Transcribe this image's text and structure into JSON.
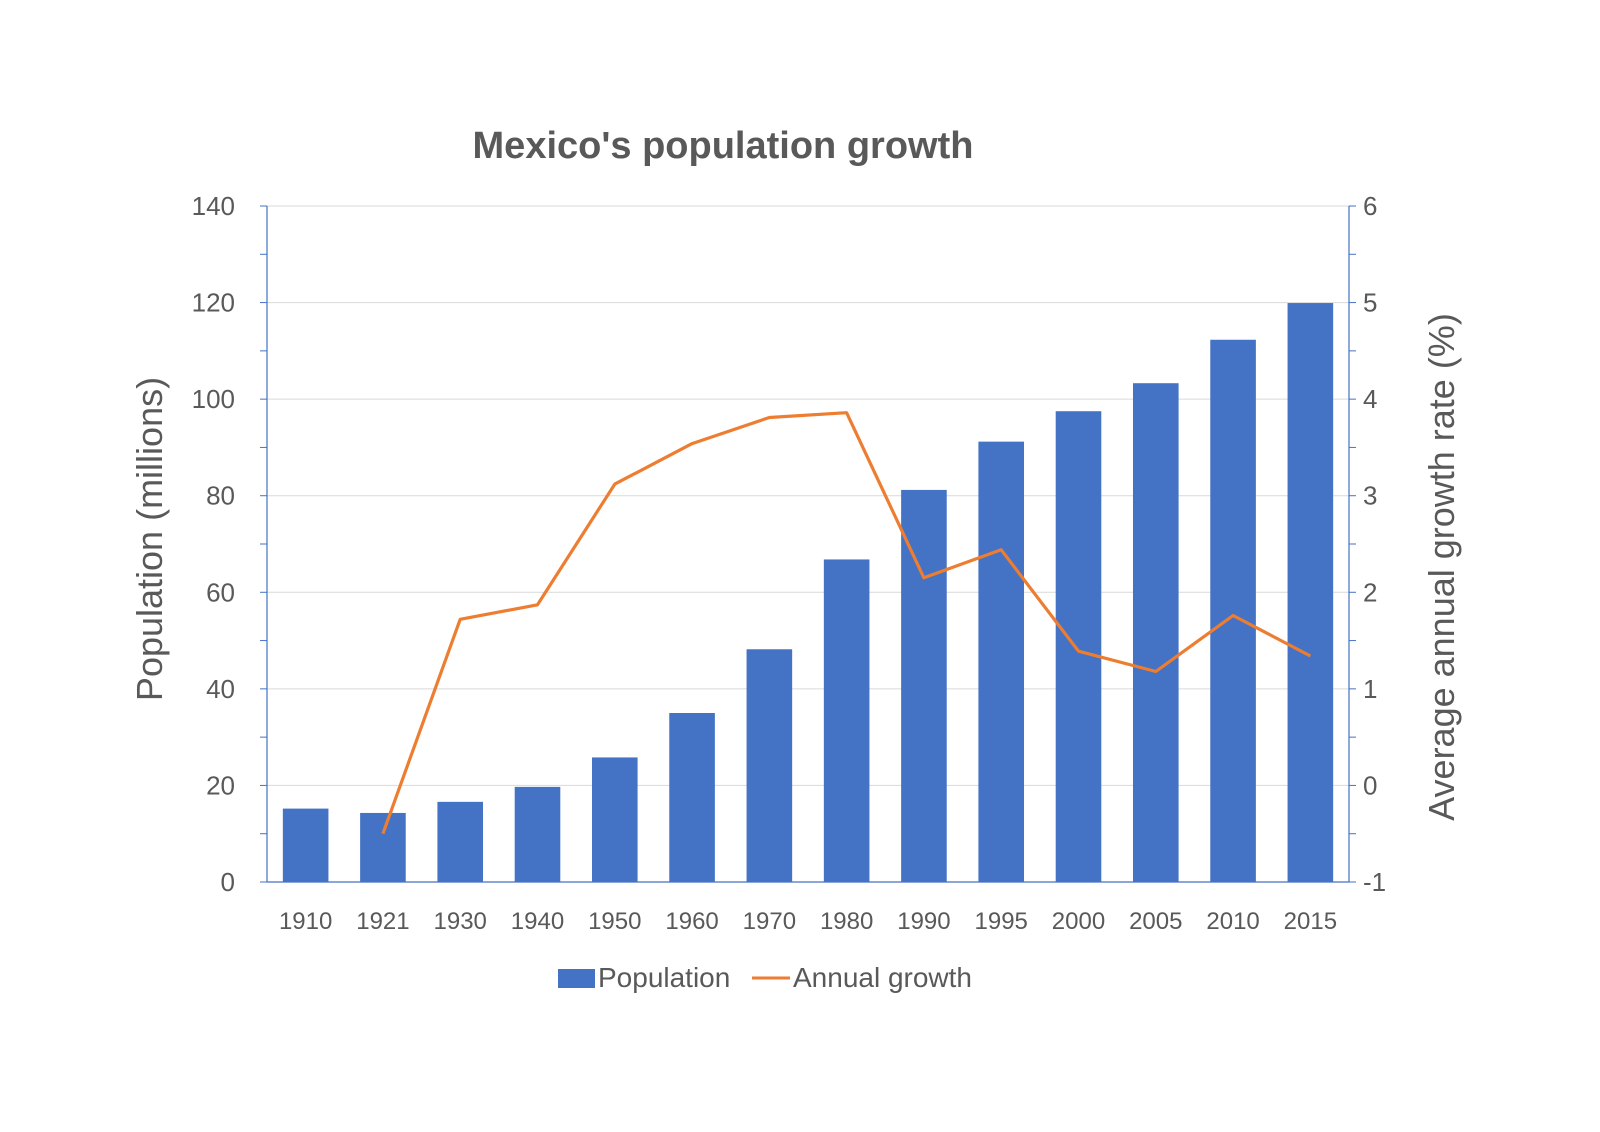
{
  "chart_data": {
    "type": "bar",
    "title": "Mexico's population growth",
    "categories": [
      "1910",
      "1921",
      "1930",
      "1940",
      "1950",
      "1960",
      "1970",
      "1980",
      "1990",
      "1995",
      "2000",
      "2005",
      "2010",
      "2015"
    ],
    "series": [
      {
        "name": "Population",
        "type": "bar",
        "axis": "left",
        "color": "#4472C4",
        "values": [
          15.2,
          14.3,
          16.6,
          19.7,
          25.8,
          35.0,
          48.2,
          66.8,
          81.2,
          91.2,
          97.5,
          103.3,
          112.3,
          119.9
        ]
      },
      {
        "name": "Annual growth",
        "type": "line",
        "axis": "right",
        "color": "#ED7D31",
        "values": [
          null,
          -0.5,
          1.72,
          1.87,
          3.12,
          3.54,
          3.81,
          3.86,
          2.15,
          2.44,
          1.39,
          1.18,
          1.76,
          1.34
        ]
      }
    ],
    "ylabel": "Population (millions)",
    "ylim": [
      0,
      140
    ],
    "yticks": [
      "0",
      "20",
      "40",
      "60",
      "80",
      "100",
      "120",
      "140"
    ],
    "y2label": "Average annual growth rate (%)",
    "y2lim": [
      -1,
      6
    ],
    "y2ticks": [
      "-1",
      "0",
      "1",
      "2",
      "3",
      "4",
      "5",
      "6"
    ],
    "grid": true,
    "legend": "bottom"
  }
}
